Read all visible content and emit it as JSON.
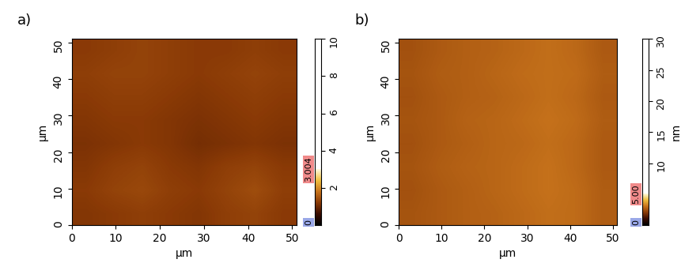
{
  "chart_data": [
    {
      "type": "heatmap",
      "title": "a)",
      "xlabel": "µm",
      "ylabel": "µm",
      "xlim": [
        0,
        51
      ],
      "ylim": [
        0,
        51
      ],
      "xticks": [
        0,
        10,
        20,
        30,
        40,
        50
      ],
      "yticks": [
        0,
        10,
        20,
        30,
        40,
        50
      ],
      "cells": [
        [
          1.15,
          1.2,
          1.25,
          1.2,
          1.15,
          1.25,
          1.3,
          1.2
        ],
        [
          1.2,
          1.3,
          1.35,
          1.25,
          1.2,
          1.3,
          1.4,
          1.25
        ],
        [
          1.15,
          1.25,
          1.3,
          1.2,
          1.15,
          1.25,
          1.3,
          1.2
        ],
        [
          1.1,
          1.15,
          1.2,
          1.15,
          1.05,
          1.1,
          1.15,
          1.1
        ],
        [
          1.15,
          1.2,
          1.2,
          1.15,
          1.1,
          1.15,
          1.2,
          1.15
        ],
        [
          1.2,
          1.25,
          1.25,
          1.2,
          1.15,
          1.2,
          1.25,
          1.2
        ],
        [
          1.25,
          1.3,
          1.3,
          1.25,
          1.2,
          1.25,
          1.3,
          1.25
        ],
        [
          1.2,
          1.25,
          1.3,
          1.25,
          1.2,
          1.2,
          1.25,
          1.2
        ]
      ],
      "colorbar_range": [
        0,
        10
      ],
      "colorbar_ticks": [
        2,
        4,
        6,
        8,
        10
      ],
      "display_range": [
        {
          "value": 0,
          "label": "0"
        },
        {
          "value": 3.004,
          "label": "3.004"
        }
      ]
    },
    {
      "type": "heatmap",
      "title": "b)",
      "xlabel": "µm",
      "ylabel": "µm",
      "xlim": [
        0,
        51
      ],
      "ylim": [
        0,
        51
      ],
      "xticks": [
        0,
        10,
        20,
        30,
        40,
        50
      ],
      "yticks": [
        0,
        10,
        20,
        30,
        40,
        50
      ],
      "cells": [
        [
          2.45,
          2.55,
          2.65,
          2.7,
          2.8,
          2.9,
          2.85,
          2.6
        ],
        [
          2.4,
          2.55,
          2.65,
          2.75,
          2.85,
          2.95,
          2.85,
          2.6
        ],
        [
          2.45,
          2.6,
          2.7,
          2.75,
          2.85,
          2.95,
          2.8,
          2.55
        ],
        [
          2.4,
          2.55,
          2.65,
          2.75,
          2.8,
          2.9,
          2.8,
          2.55
        ],
        [
          2.45,
          2.55,
          2.7,
          2.75,
          2.85,
          2.95,
          2.85,
          2.6
        ],
        [
          2.4,
          2.55,
          2.65,
          2.7,
          2.8,
          2.9,
          2.8,
          2.55
        ],
        [
          2.45,
          2.6,
          2.65,
          2.75,
          2.85,
          2.9,
          2.85,
          2.6
        ],
        [
          2.4,
          2.55,
          2.65,
          2.7,
          2.8,
          2.9,
          2.8,
          2.55
        ]
      ],
      "colorbar_range": [
        0,
        30
      ],
      "colorbar_ticks": [
        10,
        15,
        20,
        25,
        30
      ],
      "colorbar_label": "nm",
      "display_range": [
        {
          "value": 0,
          "label": "0"
        },
        {
          "value": 5,
          "label": "5.00"
        }
      ]
    }
  ]
}
